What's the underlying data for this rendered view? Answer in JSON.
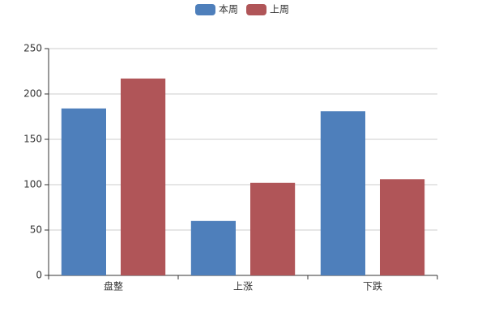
{
  "chart_data": {
    "type": "bar",
    "categories": [
      "盘整",
      "上涨",
      "下跌"
    ],
    "series": [
      {
        "name": "本周",
        "color": "#4e7fbb",
        "values": [
          184,
          60,
          181
        ]
      },
      {
        "name": "上周",
        "color": "#b05558",
        "values": [
          217,
          102,
          106
        ]
      }
    ],
    "ylim": [
      0,
      250
    ],
    "yticks": [
      0,
      50,
      100,
      150,
      200,
      250
    ],
    "grid": true,
    "legend": "top"
  }
}
